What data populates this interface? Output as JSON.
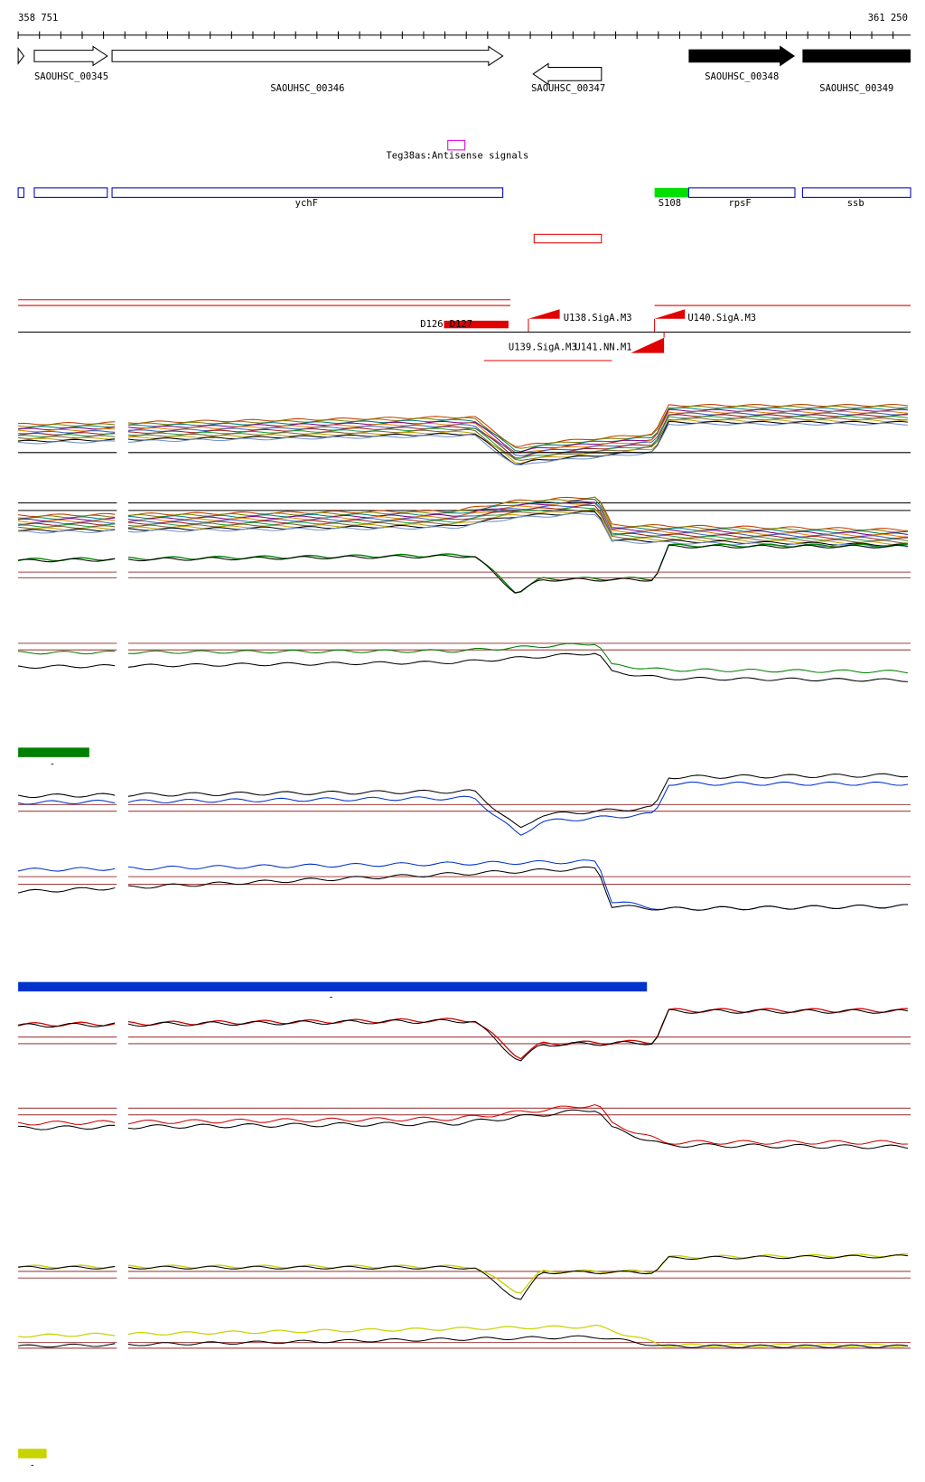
{
  "ruler": {
    "start": "358 751",
    "end": "361 250"
  },
  "genes": [
    {
      "label": "SAOUHSC_00345"
    },
    {
      "label": "SAOUHSC_00346"
    },
    {
      "label": "SAOUHSC_00347"
    },
    {
      "label": "SAOUHSC_00348"
    },
    {
      "label": "SAOUHSC_00349"
    }
  ],
  "antisense": {
    "label": "Teg38as:Antisense signals"
  },
  "features": [
    {
      "label": "ychF"
    },
    {
      "label": "S108"
    },
    {
      "label": "rpsF"
    },
    {
      "label": "ssb"
    }
  ],
  "regulators": [
    {
      "label": "D126"
    },
    {
      "label": "D127"
    },
    {
      "label": "U138.SigA.M3"
    },
    {
      "label": "U140.SigA.M3"
    },
    {
      "label": "U139.SigA.M3"
    },
    {
      "label": "U141.NN.M1"
    }
  ],
  "legends": [
    {
      "label": "-"
    },
    {
      "label": "-"
    },
    {
      "label": "-"
    }
  ]
}
